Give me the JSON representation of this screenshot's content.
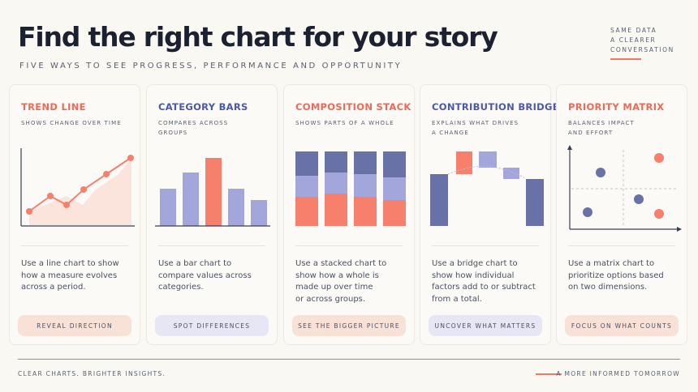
{
  "header": {
    "title": "Find the right chart for your story",
    "subtitle": "FIVE WAYS TO SEE PROGRESS, PERFORMANCE AND OPPORTUNITY",
    "corner_lines": [
      "SAME DATA",
      "A CLEARER",
      "CONVERSATION"
    ]
  },
  "colors": {
    "coral": "#f6806c",
    "lavender": "#a3a6db",
    "navy": "#6872a6",
    "coral_tint": "#fae1d8",
    "lavender_tint": "#e6e6f5"
  },
  "cards": [
    {
      "title": "TREND LINE",
      "title_color": "#ec6b58",
      "desc": [
        "SHOWS CHANGE OVER TIME"
      ],
      "body": [
        "Use a line chart to show",
        "how a measure evolves",
        "across a period."
      ],
      "pill": "REVEAL DIRECTION",
      "pill_bg": "#fae1d8",
      "chart_icon": "line-chart-icon"
    },
    {
      "title": "CATEGORY BARS",
      "title_color": "#4a59a8",
      "desc": [
        "COMPARES ACROSS",
        "GROUPS"
      ],
      "body": [
        "Use a bar chart to",
        "compare values across",
        "categories."
      ],
      "pill": "SPOT DIFFERENCES",
      "pill_bg": "#e6e6f5",
      "chart_icon": "bar-chart-icon"
    },
    {
      "title": "COMPOSITION STACK",
      "title_color": "#ec6b58",
      "desc": [
        "SHOWS PARTS OF A WHOLE"
      ],
      "body": [
        "Use a stacked chart to",
        "show how a whole is",
        "made up over time",
        "or across groups."
      ],
      "pill": "SEE THE BIGGER PICTURE",
      "pill_bg": "#fae1d8",
      "chart_icon": "stacked-bar-chart-icon"
    },
    {
      "title": "CONTRIBUTION BRIDGE",
      "title_color": "#4a59a8",
      "desc": [
        "EXPLAINS WHAT DRIVES",
        "A CHANGE"
      ],
      "body": [
        "Use a bridge chart to",
        "show how individual",
        "factors add to or subtract",
        "from a total."
      ],
      "pill": "UNCOVER WHAT MATTERS",
      "pill_bg": "#e6e6f5",
      "chart_icon": "bridge-chart-icon"
    },
    {
      "title": "PRIORITY MATRIX",
      "title_color": "#ec6b58",
      "desc": [
        "BALANCES IMPACT",
        "AND EFFORT"
      ],
      "body": [
        "Use a matrix chart to",
        "prioritize options based",
        "on two dimensions."
      ],
      "pill": "FOCUS ON WHAT COUNTS",
      "pill_bg": "#fae1d8",
      "chart_icon": "matrix-chart-icon"
    }
  ],
  "footer": {
    "left": "CLEAR CHARTS. BRIGHTER INSIGHTS.",
    "right": "A MORE INFORMED TOMORROW"
  }
}
